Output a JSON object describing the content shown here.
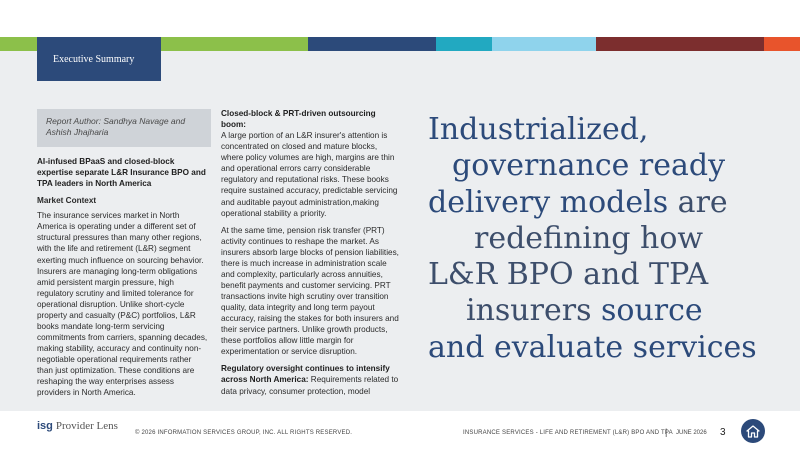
{
  "tab": "Executive Summary",
  "colors": {
    "navy": "#2c4a7a",
    "green": "#8cc04a",
    "teal": "#22a9c1",
    "lightblue": "#8fd3ec",
    "maroon": "#7c2e2e",
    "orange": "#e8542c"
  },
  "author": "Report Author: Sandhya Navage and Ashish Jhajharia",
  "col1": {
    "heading": "AI-infused BPaaS and closed-block expertise separate L&R Insurance BPO and TPA leaders in North America",
    "subheading": "Market Context",
    "body": "The insurance services market in North America is operating under a different set of structural pressures than many other regions, with the life and retirement (L&R) segment exerting much influence on sourcing behavior. Insurers are managing long-term obligations amid persistent margin pressure, high regulatory scrutiny and limited tolerance for operational disruption. Unlike short-cycle property and casualty (P&C) portfolios, L&R books mandate long-term servicing commitments from carriers, spanning decades, making stability, accuracy and continuity non-negotiable operational requirements rather than just optimization. These conditions are reshaping the way enterprises assess providers in North America."
  },
  "col2": {
    "h1": "Closed-block & PRT-driven outsourcing boom:",
    "p1": "A large portion of an L&R insurer's attention is concentrated on closed and mature blocks, where policy volumes are high, margins are thin and operational errors carry considerable regulatory and reputational risks. These books require sustained accuracy, predictable servicing and auditable payout administration,making operational stability a priority.",
    "p2": "At the same time, pension risk transfer (PRT) activity continues to reshape the market. As insurers absorb large blocks of pension liabilities, there is much increase in administration scale and complexity, particularly across annuities, benefit payments and customer servicing. PRT transactions invite high scrutiny over transition quality, data integrity and long term payout accuracy, raising the stakes for both insurers and their service partners. Unlike growth products, these portfolios allow little margin for experimentation or service disruption.",
    "h2": "Regulatory oversight continues to intensify across North America:",
    "p3": "Requirements related to data privacy, consumer protection, model"
  },
  "headline": {
    "l1": "Industrialized,",
    "l2": "governance ready",
    "l3a": "delivery models",
    "l3b": " are",
    "l4": "redefining how",
    "l5": "L&R BPO and TPA",
    "l6a": "insurers ",
    "l6b": "source",
    "l7": "and evaluate services"
  },
  "footer": {
    "logo_isg": "isg",
    "logo_pl": "Provider Lens",
    "copyright": "© 2026 INFORMATION SERVICES GROUP, INC. ALL RIGHTS RESERVED.",
    "report": "INSURANCE SERVICES - LIFE AND RETIREMENT (L&R) BPO AND TPA",
    "sep": "|",
    "date": "JUNE 2026",
    "page": "3"
  }
}
